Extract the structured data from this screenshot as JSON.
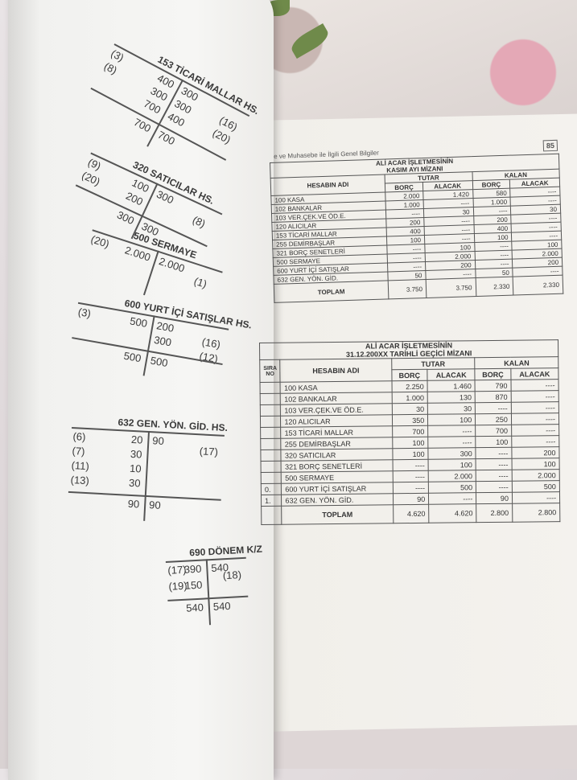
{
  "header": {
    "running_title": "e ve Muhasebe ile İlgili Genel Bilgiler",
    "page_number": "85"
  },
  "t_accounts": [
    {
      "title": "153 TİCARİ MALLAR HS.",
      "debit_refs": [
        "(3)",
        "(8)"
      ],
      "debit": [
        "400",
        "300",
        "700"
      ],
      "credit": [
        "300",
        "300",
        "400"
      ],
      "credit_refs": [
        "(16)",
        "(20)"
      ],
      "total_debit": "700",
      "total_credit": "700"
    },
    {
      "title": "320 SATICILAR HS.",
      "debit_refs": [
        "(9)",
        "(20)"
      ],
      "debit": [
        "100",
        "200"
      ],
      "credit": [
        "300"
      ],
      "credit_refs": [
        "(8)"
      ],
      "total_debit": "300",
      "total_credit": "300"
    },
    {
      "title": "500 SERMAYE",
      "debit_refs": [
        "(20)"
      ],
      "debit": [
        "2.000"
      ],
      "credit": [
        "2.000"
      ],
      "credit_refs": [
        "(1)"
      ]
    },
    {
      "title": "600 YURT İÇİ SATIŞLAR HS.",
      "debit_refs": [
        "(3)"
      ],
      "debit": [
        "500"
      ],
      "credit": [
        "200",
        "300"
      ],
      "credit_refs": [
        "(16)",
        "(12)"
      ],
      "total_debit": "500",
      "total_credit": "500"
    },
    {
      "title": "632 GEN. YÖN. GİD. HS.",
      "debit_refs": [
        "(6)",
        "(7)",
        "(11)",
        "(13)"
      ],
      "debit": [
        "20",
        "30",
        "10",
        "30"
      ],
      "credit": [
        "90"
      ],
      "credit_refs": [
        "(17)"
      ],
      "total_debit": "90",
      "total_credit": "90"
    },
    {
      "title": "690 DÖNEM K/Z",
      "debit_refs": [
        "(17)",
        "(19)"
      ],
      "debit": [
        "390",
        "150"
      ],
      "credit": [
        "540"
      ],
      "credit_refs": [
        "(18)"
      ],
      "total_debit": "540",
      "total_credit": "540"
    }
  ],
  "table1": {
    "title_line1": "ALİ ACAR İŞLETMESİNİN",
    "title_line2": "KASIM AYI MİZANI",
    "col_account": "HESABIN ADI",
    "col_tutar": "TUTAR",
    "col_kalan": "KALAN",
    "col_borc": "BORÇ",
    "col_alacak": "ALACAK",
    "rows": [
      {
        "name": "100 KASA",
        "tb": "2.000",
        "ta": "1.420",
        "kb": "580",
        "ka": "----"
      },
      {
        "name": "102 BANKALAR",
        "tb": "1.000",
        "ta": "----",
        "kb": "1.000",
        "ka": "----"
      },
      {
        "name": "103 VER.ÇEK.VE ÖD.E.",
        "tb": "----",
        "ta": "30",
        "kb": "----",
        "ka": "30"
      },
      {
        "name": "120 ALICILAR",
        "tb": "200",
        "ta": "----",
        "kb": "200",
        "ka": "----"
      },
      {
        "name": "153 TİCARİ MALLAR",
        "tb": "400",
        "ta": "----",
        "kb": "400",
        "ka": "----"
      },
      {
        "name": "255 DEMİRBAŞLAR",
        "tb": "100",
        "ta": "----",
        "kb": "100",
        "ka": "----"
      },
      {
        "name": "321 BORÇ SENETLERİ",
        "tb": "----",
        "ta": "100",
        "kb": "----",
        "ka": "100"
      },
      {
        "name": "500 SERMAYE",
        "tb": "----",
        "ta": "2.000",
        "kb": "----",
        "ka": "2.000"
      },
      {
        "name": "600 YURT İÇİ SATIŞLAR",
        "tb": "----",
        "ta": "200",
        "kb": "----",
        "ka": "200"
      },
      {
        "name": "632 GEN. YÖN. GİD.",
        "tb": "50",
        "ta": "----",
        "kb": "50",
        "ka": "----"
      }
    ],
    "total_label": "TOPLAM",
    "total": {
      "tb": "3.750",
      "ta": "3.750",
      "kb": "2.330",
      "ka": "2.330"
    }
  },
  "table2": {
    "title_line1": "ALİ ACAR İŞLETMESİNİN",
    "title_line2": "31.12.200XX TARİHLİ GEÇİCİ MİZANI",
    "col_no": "SIRA NO",
    "col_account": "HESABIN ADI",
    "col_tutar": "TUTAR",
    "col_kalan": "KALAN",
    "col_borc": "BORÇ",
    "col_alacak": "ALACAK",
    "rows": [
      {
        "no": "",
        "name": "100 KASA",
        "tb": "2.250",
        "ta": "1.460",
        "kb": "790",
        "ka": "----"
      },
      {
        "no": "",
        "name": "102 BANKALAR",
        "tb": "1.000",
        "ta": "130",
        "kb": "870",
        "ka": "----"
      },
      {
        "no": "",
        "name": "103 VER.ÇEK.VE ÖD.E.",
        "tb": "30",
        "ta": "30",
        "kb": "----",
        "ka": "----"
      },
      {
        "no": "",
        "name": "120 ALICILAR",
        "tb": "350",
        "ta": "100",
        "kb": "250",
        "ka": "----"
      },
      {
        "no": "",
        "name": "153 TİCARİ MALLAR",
        "tb": "700",
        "ta": "----",
        "kb": "700",
        "ka": "----"
      },
      {
        "no": "",
        "name": "255 DEMİRBAŞLAR",
        "tb": "100",
        "ta": "----",
        "kb": "100",
        "ka": "----"
      },
      {
        "no": "",
        "name": "320  SATICILAR",
        "tb": "100",
        "ta": "300",
        "kb": "----",
        "ka": "200"
      },
      {
        "no": "",
        "name": "321 BORÇ SENETLERİ",
        "tb": "----",
        "ta": "100",
        "kb": "----",
        "ka": "100"
      },
      {
        "no": "",
        "name": "500 SERMAYE",
        "tb": "----",
        "ta": "2.000",
        "kb": "----",
        "ka": "2.000"
      },
      {
        "no": "0.",
        "name": "600 YURT İÇİ SATIŞLAR",
        "tb": "----",
        "ta": "500",
        "kb": "----",
        "ka": "500"
      },
      {
        "no": "1.",
        "name": "632 GEN. YÖN. GİD.",
        "tb": "90",
        "ta": "----",
        "kb": "90",
        "ka": "----"
      }
    ],
    "total_label": "TOPLAM",
    "total": {
      "tb": "4.620",
      "ta": "4.620",
      "kb": "2.800",
      "ka": "2.800"
    }
  }
}
